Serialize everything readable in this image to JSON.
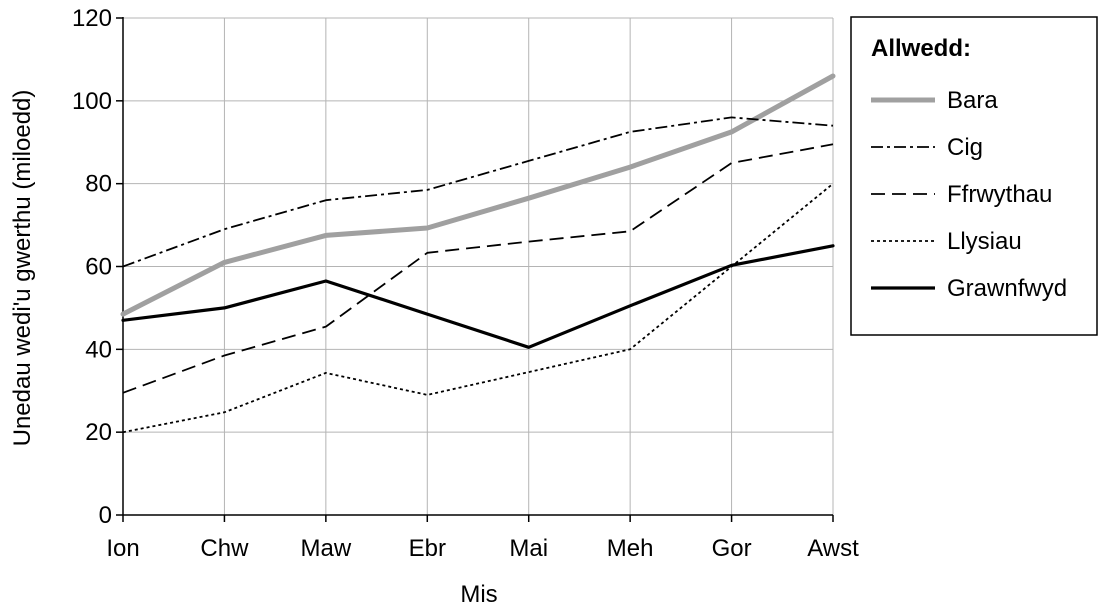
{
  "chart_data": {
    "type": "line",
    "xlabel": "Mis",
    "ylabel": "Unedau wedi'u gwerthu (miloedd)",
    "categories": [
      "Ion",
      "Chw",
      "Maw",
      "Ebr",
      "Mai",
      "Meh",
      "Gor",
      "Awst"
    ],
    "ylim": [
      0,
      120
    ],
    "yticks": [
      0,
      20,
      40,
      60,
      80,
      100,
      120
    ],
    "grid": true,
    "legend": {
      "title": "Allwedd:",
      "placement": "right"
    },
    "series": [
      {
        "name": "Bara",
        "style": "solid-thick-gray",
        "color": "#a0a0a0",
        "values": [
          48.5,
          61,
          67.5,
          69.3,
          76.5,
          84,
          92.5,
          106
        ]
      },
      {
        "name": "Cig",
        "style": "dash-dot",
        "color": "#000000",
        "values": [
          60,
          69,
          76,
          78.5,
          85.5,
          92.5,
          96,
          94
        ]
      },
      {
        "name": "Ffrwythau",
        "style": "dashed",
        "color": "#000000",
        "values": [
          29.5,
          38.5,
          45.5,
          63.3,
          66,
          68.5,
          85,
          89.5
        ]
      },
      {
        "name": "Llysiau",
        "style": "dotted",
        "color": "#000000",
        "values": [
          20,
          24.8,
          34.3,
          29,
          34.5,
          40,
          60,
          80
        ]
      },
      {
        "name": "Grawnfwyd",
        "style": "solid-thick-black",
        "color": "#000000",
        "values": [
          47,
          50,
          56.5,
          48.5,
          40.5,
          50.5,
          60.3,
          65
        ]
      }
    ]
  }
}
